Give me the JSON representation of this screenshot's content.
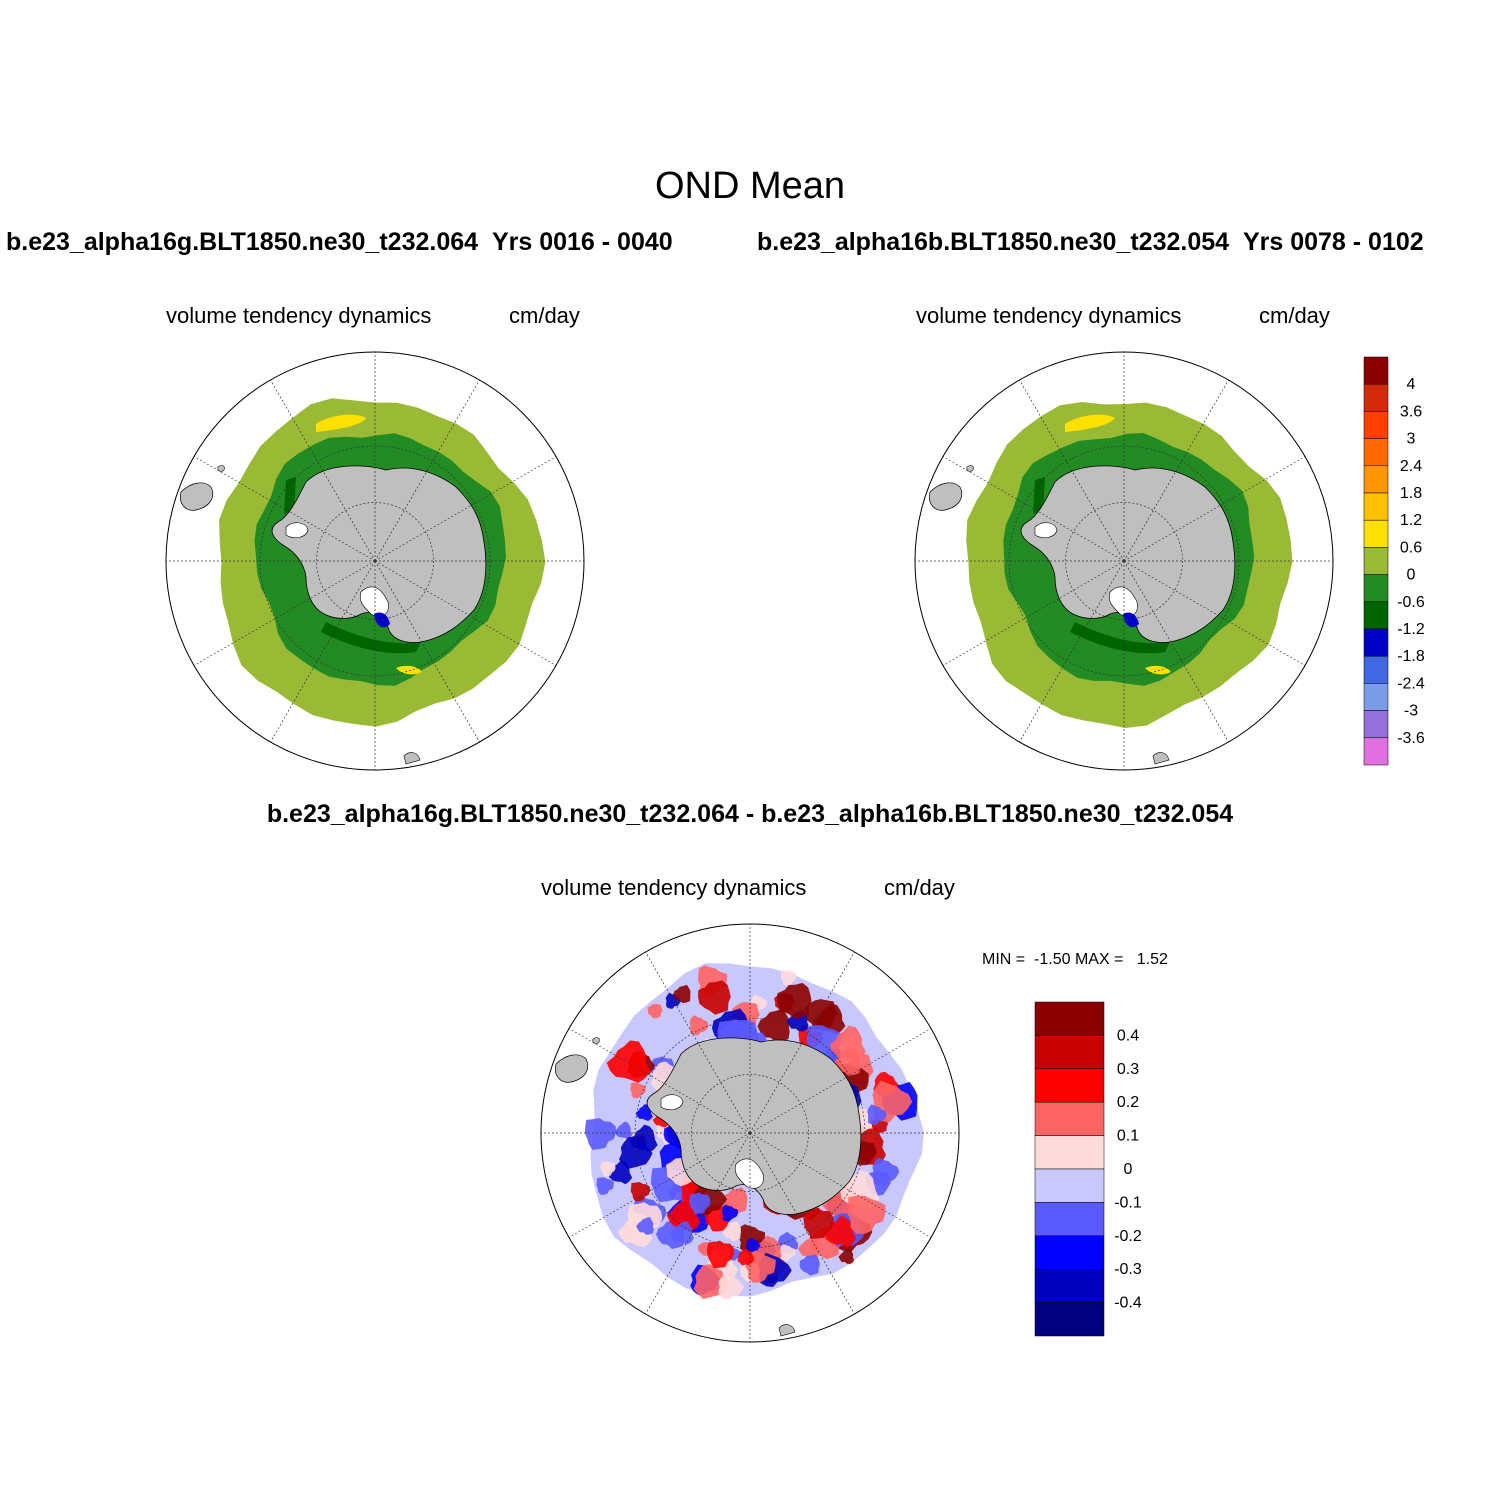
{
  "title": "OND Mean",
  "panels": [
    {
      "case": "b.e23_alpha16g.BLT1850.ne30_t232.064",
      "years": "Yrs 0016 - 0040",
      "variable": "volume tendency dynamics",
      "units": "cm/day"
    },
    {
      "case": "b.e23_alpha16b.BLT1850.ne30_t232.054",
      "years": "Yrs 0078 - 0102",
      "variable": "volume tendency dynamics",
      "units": "cm/day"
    }
  ],
  "difference": {
    "title": "b.e23_alpha16g.BLT1850.ne30_t232.064 - b.e23_alpha16b.BLT1850.ne30_t232.054",
    "variable": "volume tendency dynamics",
    "units": "cm/day",
    "min_label": "MIN =",
    "min_value": "-1.50",
    "max_label": "MAX =",
    "max_value": "1.52"
  },
  "colorbar_main": {
    "labels": [
      "4",
      "3.6",
      "3",
      "2.4",
      "1.8",
      "1.2",
      "0.6",
      "0",
      "-0.6",
      "-1.2",
      "-1.8",
      "-2.4",
      "-3",
      "-3.6"
    ],
    "colors": [
      "#8b0000",
      "#d42a0c",
      "#ff4000",
      "#ff6a00",
      "#ff9600",
      "#ffc000",
      "#ffe000",
      "#9aba36",
      "#238b23",
      "#006400",
      "#0000c8",
      "#4169e1",
      "#7b9de8",
      "#9370db",
      "#e070e0"
    ]
  },
  "colorbar_diff": {
    "labels": [
      "0.4",
      "0.3",
      "0.2",
      "0.1",
      "0",
      "-0.1",
      "-0.2",
      "-0.3",
      "-0.4"
    ],
    "colors": [
      "#8b0000",
      "#c80000",
      "#ff0000",
      "#ff6464",
      "#ffdcdc",
      "#c8c8ff",
      "#5a5aff",
      "#0000ff",
      "#0000c0",
      "#000080"
    ]
  },
  "map_colors": {
    "land": "#bfbfbf",
    "ocean_fill": "#ffffff",
    "outer_band": "#9aba36",
    "inner_band": "#238b23",
    "dark_band": "#006400",
    "positive_patch": "#ffe000",
    "blue_patch": "#0000c8"
  }
}
